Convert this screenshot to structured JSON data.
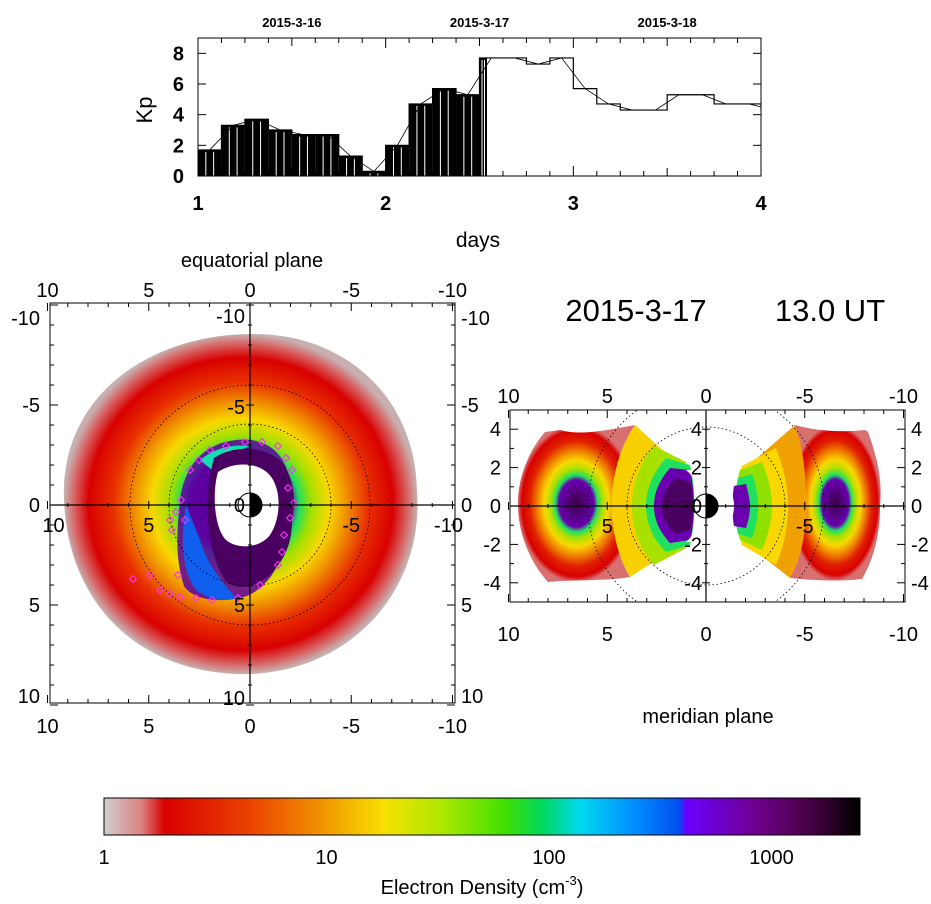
{
  "timestamp": {
    "date": "2015-3-17",
    "time": "13.0 UT"
  },
  "colors": {
    "scale": [
      "#c8c8c8",
      "#d20000",
      "#f08000",
      "#f8d800",
      "#90e000",
      "#20e040",
      "#00d8f0",
      "#0060f0",
      "#6400ff",
      "#3a0030",
      "#000000"
    ]
  },
  "chart_data": [
    {
      "type": "line",
      "name": "kp-history",
      "ylabel": "Kp",
      "xlabel": "days",
      "date_labels": [
        {
          "x": 1.5,
          "label": "2015-3-16"
        },
        {
          "x": 2.5,
          "label": "2015-3-17"
        },
        {
          "x": 3.5,
          "label": "2015-3-18"
        }
      ],
      "xlim": [
        1,
        4
      ],
      "ylim": [
        0,
        9
      ],
      "x_ticks": [
        1,
        2,
        3,
        4
      ],
      "y_ticks": [
        0,
        2,
        4,
        6,
        8
      ],
      "current_day": 2.54,
      "kp_steps": [
        {
          "x": 1.0,
          "kp": 1.7
        },
        {
          "x": 1.125,
          "kp": 3.3
        },
        {
          "x": 1.25,
          "kp": 3.7
        },
        {
          "x": 1.375,
          "kp": 3.0
        },
        {
          "x": 1.5,
          "kp": 2.7
        },
        {
          "x": 1.625,
          "kp": 2.7
        },
        {
          "x": 1.75,
          "kp": 1.3
        },
        {
          "x": 1.875,
          "kp": 0.3
        },
        {
          "x": 2.0,
          "kp": 2.0
        },
        {
          "x": 2.125,
          "kp": 4.7
        },
        {
          "x": 2.25,
          "kp": 5.7
        },
        {
          "x": 2.375,
          "kp": 5.3
        },
        {
          "x": 2.5,
          "kp": 7.7
        },
        {
          "x": 2.625,
          "kp": 7.7
        },
        {
          "x": 2.75,
          "kp": 7.3
        },
        {
          "x": 2.875,
          "kp": 7.7
        },
        {
          "x": 3.0,
          "kp": 5.7
        },
        {
          "x": 3.125,
          "kp": 4.7
        },
        {
          "x": 3.25,
          "kp": 4.3
        },
        {
          "x": 3.375,
          "kp": 4.3
        },
        {
          "x": 3.5,
          "kp": 5.3
        },
        {
          "x": 3.625,
          "kp": 5.3
        },
        {
          "x": 3.75,
          "kp": 4.7
        },
        {
          "x": 3.875,
          "kp": 4.7
        },
        {
          "x": 4.0,
          "kp": 4.3
        }
      ]
    },
    {
      "type": "heatmap",
      "name": "equatorial-plane",
      "title": "equatorial plane",
      "xlim": [
        10,
        -10
      ],
      "ylim": [
        -10,
        10
      ],
      "tick_labels": [
        "10",
        "5",
        "0",
        "-5",
        "-10"
      ],
      "inner_tick_labels": [
        "-10",
        "-5",
        "0",
        "5",
        "10"
      ],
      "dotted_circles_Re": [
        4,
        6
      ]
    },
    {
      "type": "heatmap",
      "name": "meridian-plane",
      "title": "meridian plane",
      "xlim": [
        10,
        -10
      ],
      "ylim": [
        5,
        -5
      ],
      "x_tick_labels": [
        "10",
        "5",
        "0",
        "-5",
        "-10"
      ],
      "y_tick_labels": [
        "4",
        "2",
        "0",
        "-2",
        "-4"
      ],
      "dotted_circles_Re": [
        4,
        6
      ]
    },
    {
      "type": "heatmap",
      "name": "colorbar",
      "xlabel_prefix": "Electron Density (cm",
      "xlabel_exponent": "-3",
      "xlabel_suffix": ")",
      "log_range": [
        1,
        2500
      ],
      "tick_labels": [
        "1",
        "10",
        "100",
        "1000"
      ],
      "tick_values": [
        1,
        10,
        100,
        1000
      ]
    }
  ]
}
